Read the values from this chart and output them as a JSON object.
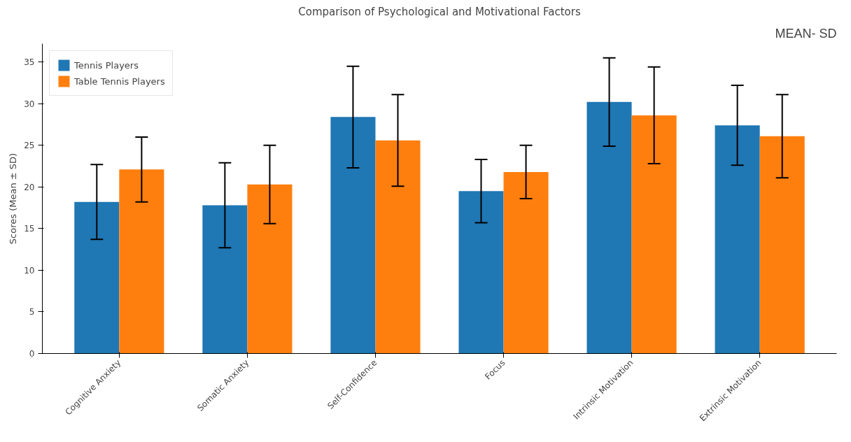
{
  "chart_data": {
    "type": "bar",
    "title": "Comparison of Psychological and Motivational Factors",
    "ylabel": "Scores (Mean ± SD)",
    "annotations": [
      "MEAN- SD"
    ],
    "categories": [
      "Cognitive Anxiety",
      "Somatic Anxiety",
      "Self-Confidence",
      "Focus",
      "Intrinsic Motivation",
      "Extrinsic Motivation"
    ],
    "series": [
      {
        "name": "Tennis Players",
        "color": "#1f77b4",
        "values": [
          18.2,
          17.8,
          28.4,
          19.5,
          30.2,
          27.4
        ],
        "errors": [
          4.5,
          5.1,
          6.1,
          3.8,
          5.3,
          4.8
        ]
      },
      {
        "name": "Table Tennis Players",
        "color": "#ff7f0e",
        "values": [
          22.1,
          20.3,
          25.6,
          21.8,
          28.6,
          26.1
        ],
        "errors": [
          3.9,
          4.7,
          5.5,
          3.2,
          5.8,
          5.0
        ]
      }
    ],
    "ylim": [
      0,
      37.2
    ],
    "yticks": [
      0,
      5,
      10,
      15,
      20,
      25,
      30,
      35
    ],
    "legend": "top left",
    "grid": false
  }
}
